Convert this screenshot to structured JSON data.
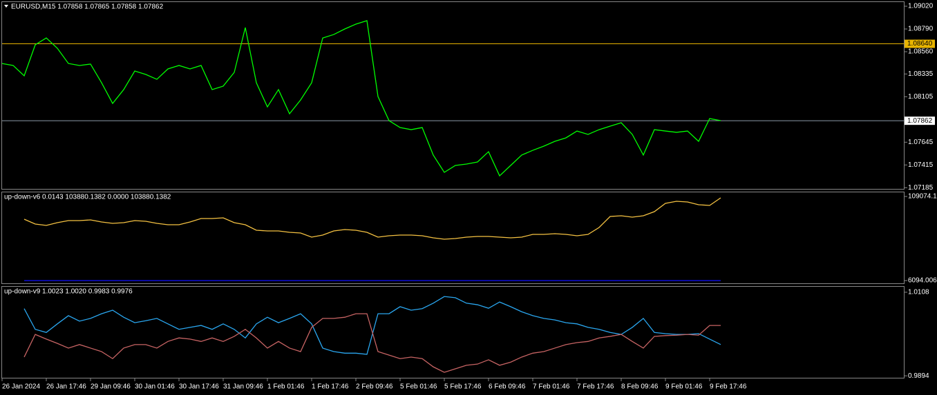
{
  "chart_data": [
    {
      "type": "line",
      "title": "EURUSD,M15  1.07858 1.07865 1.07858 1.07862",
      "ylim": [
        1.07173,
        1.09062
      ],
      "yticks": [
        {
          "value": 1.0902,
          "label": "1.09020"
        },
        {
          "value": 1.0879,
          "label": "1.08790"
        },
        {
          "value": 1.0856,
          "label": "1.08560"
        },
        1.08335,
        1.08105,
        1.07645,
        1.07415,
        1.07185
      ],
      "levels": [
        {
          "value": 1.0864,
          "label": "1.08640",
          "color": "#e8b400"
        },
        {
          "value": 1.07862,
          "color": "#8c9aa8"
        }
      ],
      "series": [
        {
          "color": "#00ff00",
          "values": [
            1.08441,
            1.08421,
            1.08316,
            1.0863,
            1.08699,
            1.08595,
            1.08441,
            1.08421,
            1.08435,
            1.08246,
            1.08037,
            1.08177,
            1.08365,
            1.0833,
            1.08281,
            1.08386,
            1.08421,
            1.08386,
            1.08421,
            1.08177,
            1.08212,
            1.08351,
            1.08804,
            1.08246,
            1.08002,
            1.08177,
            1.07933,
            1.08072,
            1.08246,
            1.08699,
            1.08734,
            1.0879,
            1.08839,
            1.08874,
            1.08107,
            1.07863,
            1.07793,
            1.07772,
            1.07793,
            1.07515,
            1.0734,
            1.0741,
            1.07424,
            1.07445,
            1.07549,
            1.07305,
            1.0741,
            1.07515,
            1.07563,
            1.07605,
            1.07654,
            1.07689,
            1.07758,
            1.07724,
            1.07772,
            1.07807,
            1.07842,
            1.07724,
            1.07515,
            1.07772,
            1.07758,
            1.07745,
            1.07758,
            1.07654,
            1.07884,
            1.07863
          ]
        }
      ]
    },
    {
      "type": "line",
      "title": "up-down-v6 0.0143 103880.1382 0.0000 103880.1382",
      "ylim": [
        2718,
        114139
      ],
      "yticks": [
        109074.14,
        6094.006
      ],
      "series": [
        {
          "color": "#f5c242",
          "values": [
            null,
            null,
            81219,
            75310,
            73622,
            76998,
            79531,
            79531,
            80375,
            77843,
            76154,
            76998,
            79531,
            78687,
            76154,
            74466,
            74466,
            77843,
            82063,
            82063,
            82907,
            76998,
            74466,
            67713,
            66869,
            66869,
            65181,
            64337,
            59272,
            61805,
            66869,
            68557,
            67713,
            65181,
            59272,
            60961,
            61805,
            61805,
            60961,
            58428,
            56740,
            57584,
            59272,
            60116,
            60116,
            59272,
            58428,
            59272,
            62649,
            62649,
            63493,
            62649,
            60961,
            62649,
            71090,
            84595,
            85439,
            83751,
            85439,
            90504,
            100633,
            103166,
            102321,
            98945,
            98101,
            107386
          ]
        },
        {
          "color": "#1010ff",
          "values": [
            null,
            null,
            6094.006,
            6094.006,
            6094.006,
            6094.006,
            6094.006,
            6094.006,
            6094.006,
            6094.006,
            6094.006,
            6094.006,
            6094.006,
            6094.006,
            6094.006,
            6094.006,
            6094.006,
            6094.006,
            6094.006,
            6094.006,
            6094.006,
            6094.006,
            6094.006,
            6094.006,
            6094.006,
            6094.006,
            6094.006,
            6094.006,
            6094.006,
            6094.006,
            6094.006,
            6094.006,
            6094.006,
            6094.006,
            6094.006,
            6094.006,
            6094.006,
            6094.006,
            6094.006,
            6094.006,
            6094.006,
            6094.006,
            6094.006,
            6094.006,
            6094.006,
            6094.006,
            6094.006,
            6094.006,
            6094.006,
            6094.006,
            6094.006,
            6094.006,
            6094.006,
            6094.006,
            6094.006,
            6094.006,
            6094.006,
            6094.006,
            6094.006,
            6094.006,
            6094.006,
            6094.006,
            6094.006,
            6094.006,
            6094.006,
            6094.006
          ]
        }
      ]
    },
    {
      "type": "line",
      "title": "up-down-v9 1.0023 1.0020 0.9983 0.9976",
      "ylim": [
        0.9889,
        1.0122
      ],
      "yticks": [
        1.0108,
        0.9894
      ],
      "categories": [
        "26 Jan 2024",
        null,
        null,
        null,
        "26 Jan 17:46",
        null,
        null,
        null,
        "29 Jan 09:46",
        null,
        null,
        null,
        "30 Jan 01:46",
        null,
        null,
        null,
        "30 Jan 17:46",
        null,
        null,
        null,
        "31 Jan 09:46",
        null,
        null,
        null,
        "1 Feb 01:46",
        null,
        null,
        null,
        "1 Feb 17:46",
        null,
        null,
        null,
        "2 Feb 09:46",
        null,
        null,
        null,
        "5 Feb 01:46",
        null,
        null,
        null,
        "5 Feb 17:46",
        null,
        null,
        null,
        "6 Feb 09:46",
        null,
        null,
        null,
        "7 Feb 01:46",
        null,
        null,
        null,
        "7 Feb 17:46",
        null,
        null,
        null,
        "8 Feb 09:46",
        null,
        null,
        null,
        "9 Feb 01:46",
        null,
        null,
        null,
        "9 Feb 17:46",
        null
      ],
      "series": [
        {
          "color": "#2aa7f0",
          "values": [
            null,
            null,
            1.0066,
            1.0013,
            1.0005,
            1.0027,
            1.0048,
            1.0034,
            1.0041,
            1.0053,
            1.0062,
            1.0044,
            1.003,
            1.0035,
            1.0041,
            1.0027,
            1.0013,
            1.0018,
            1.0023,
            1.0013,
            1.0027,
            1.0013,
            0.9991,
            1.0027,
            1.0044,
            1.003,
            1.0041,
            1.0053,
            1.0027,
            0.9965,
            0.9956,
            0.9952,
            0.9952,
            0.9949,
            1.0053,
            1.0053,
            1.0071,
            1.0062,
            1.0066,
            1.008,
            1.0097,
            1.0094,
            1.008,
            1.0076,
            1.0067,
            1.0083,
            1.0071,
            1.0058,
            1.0048,
            1.0041,
            1.0037,
            1.003,
            1.0027,
            1.0018,
            1.0013,
            1.0005,
            1.0,
            1.0018,
            1.0041,
            1.0005,
            1.0002,
            1.0,
            1.0,
            1.0002,
            0.9988,
            0.9974
          ]
        },
        {
          "color": "#c86464",
          "values": [
            null,
            null,
            0.9942,
            1.0,
            0.9988,
            0.9977,
            0.9965,
            0.9974,
            0.9965,
            0.9956,
            0.9938,
            0.9965,
            0.9974,
            0.9974,
            0.9965,
            0.9982,
            0.9991,
            0.9988,
            0.9982,
            0.9991,
            0.9982,
            0.9995,
            1.0013,
            0.9991,
            0.9965,
            0.9982,
            0.9965,
            0.9956,
            1.0018,
            1.0041,
            1.0041,
            1.0044,
            1.0053,
            1.0053,
            0.9956,
            0.9947,
            0.9938,
            0.9942,
            0.9938,
            0.9917,
            0.9903,
            0.9912,
            0.9921,
            0.9924,
            0.9935,
            0.9921,
            0.9929,
            0.9942,
            0.9952,
            0.9956,
            0.9965,
            0.9974,
            0.9979,
            0.9982,
            0.9991,
            0.9995,
            1.0,
            0.9982,
            0.9965,
            0.9995,
            0.9997,
            0.9998,
            1.0,
            0.9998,
            1.0023,
            1.0023
          ]
        }
      ]
    }
  ]
}
